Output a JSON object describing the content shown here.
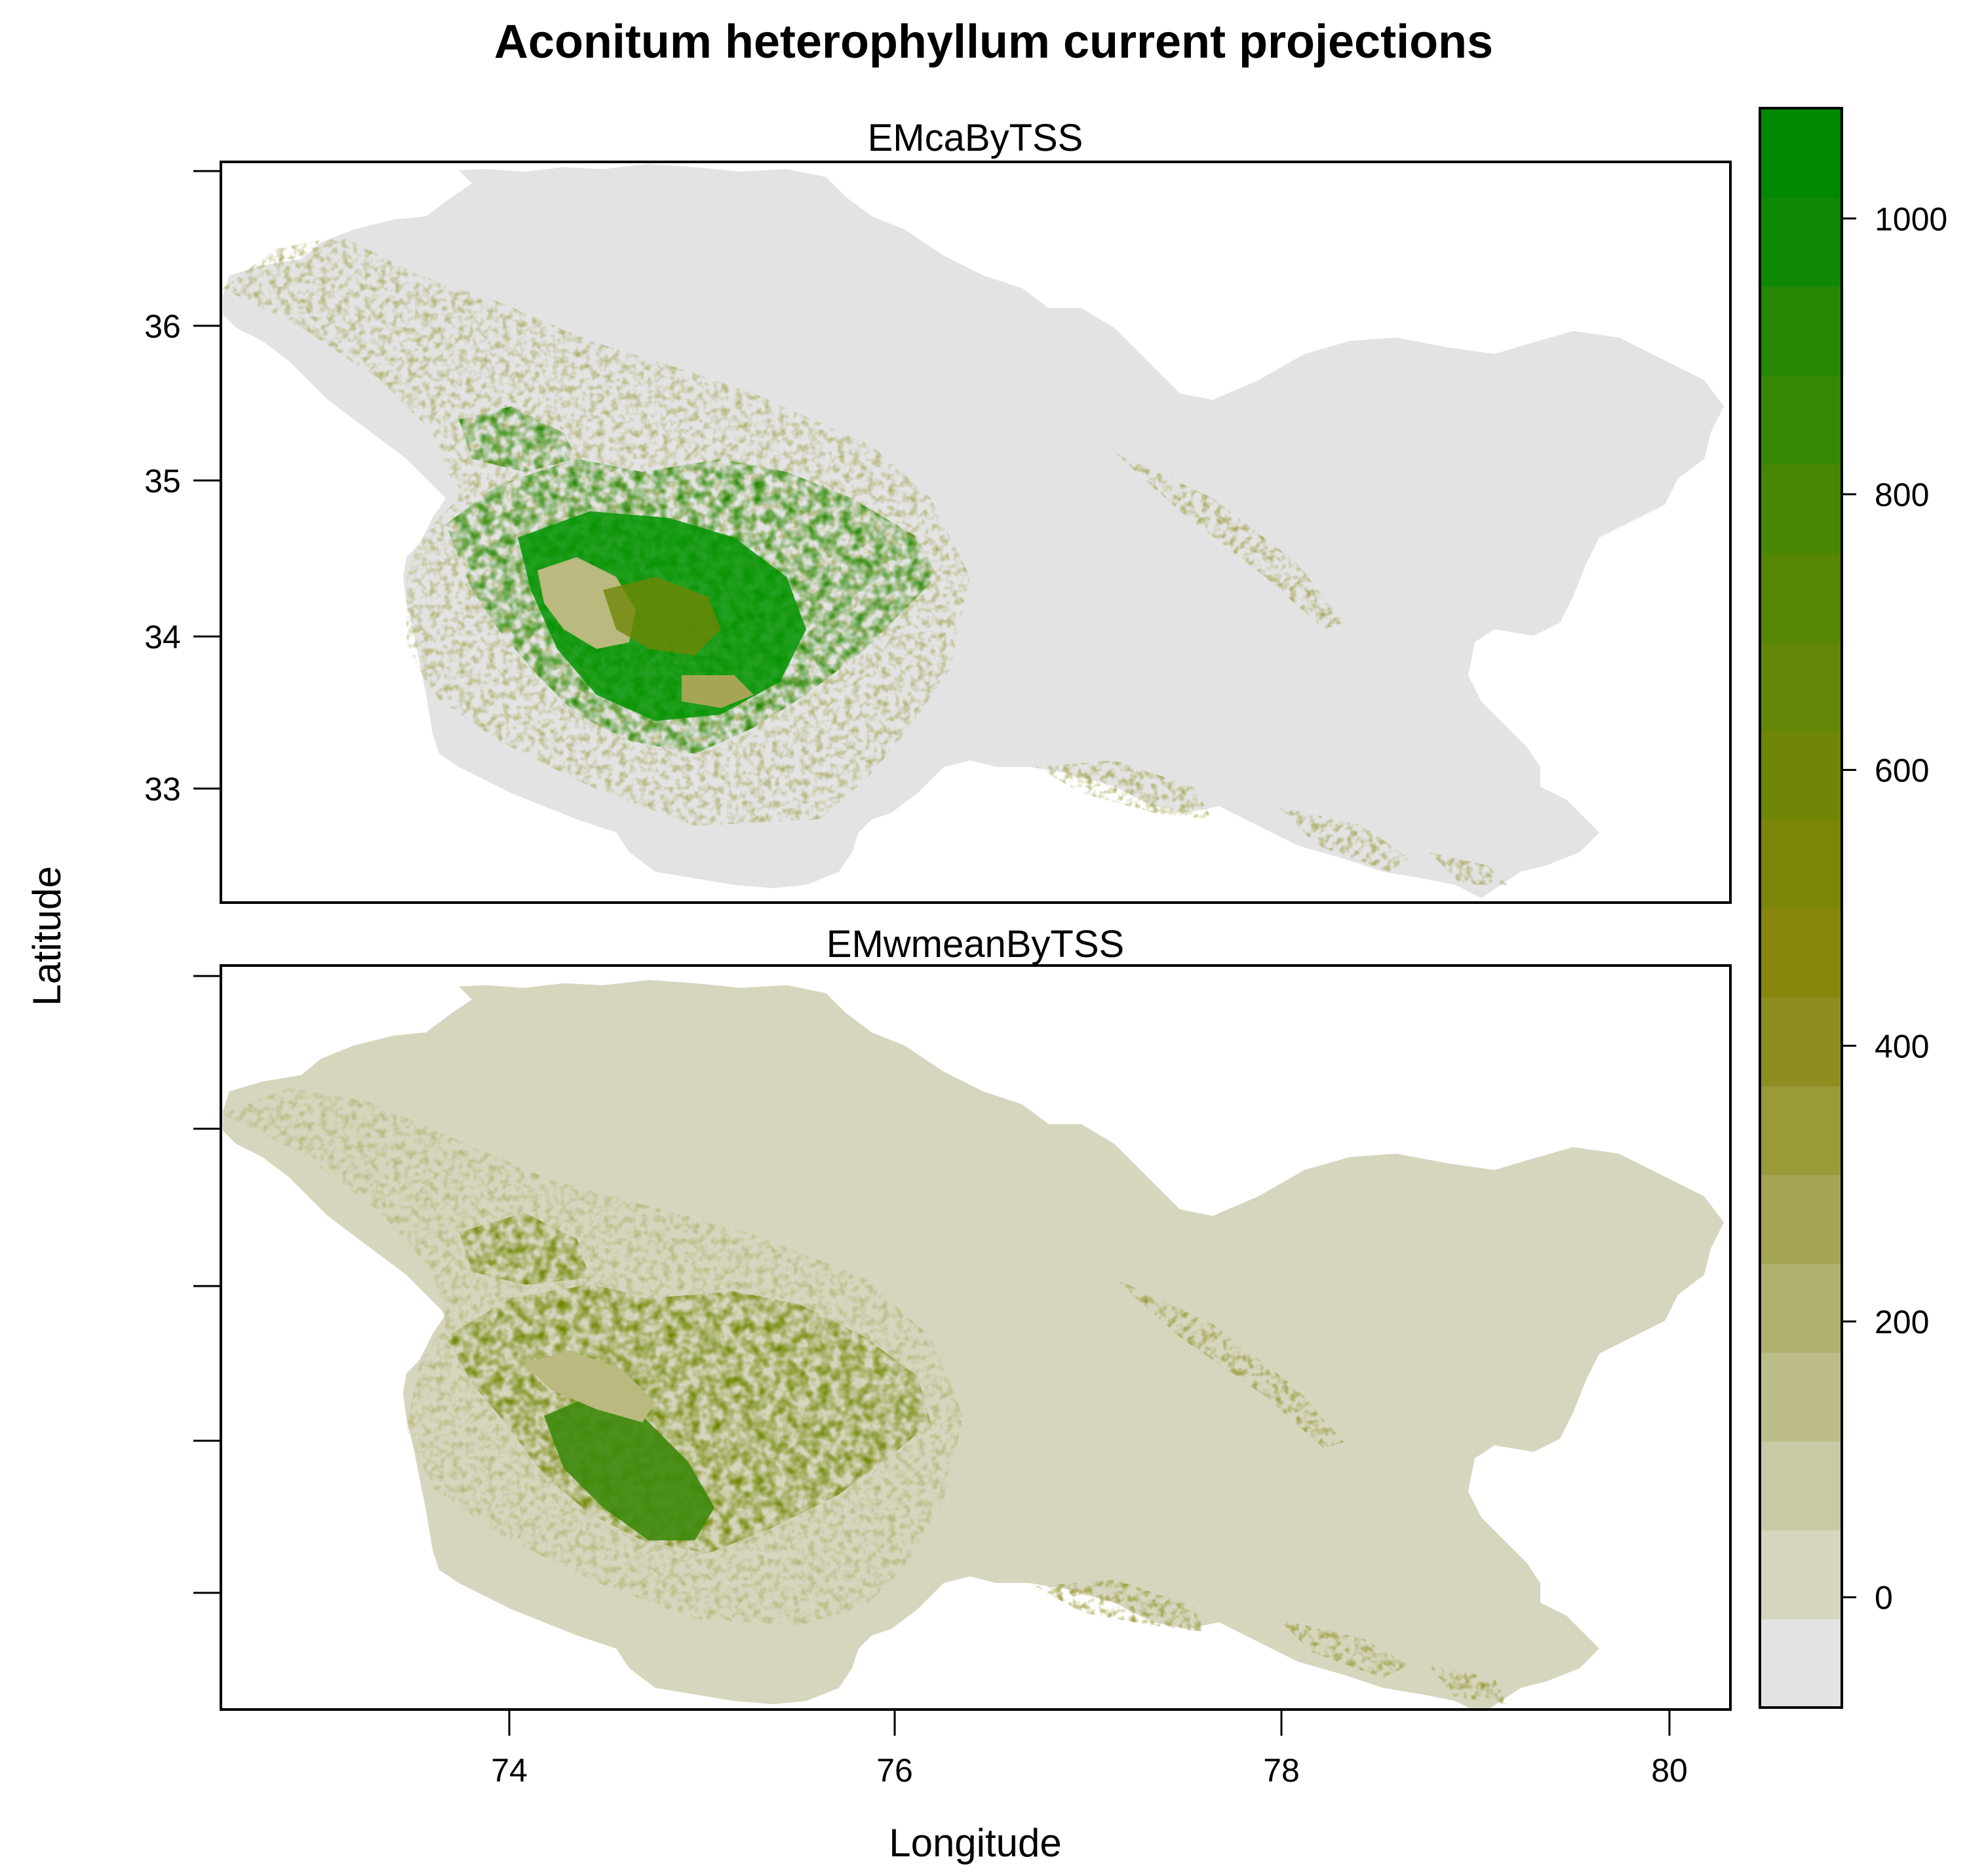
{
  "figure": {
    "title": "Aconitum heterophyllum current projections",
    "xlabel": "Longitude",
    "ylabel": "Latitude"
  },
  "colors": {
    "background_region": "#e3e3e3",
    "ramp": [
      "#e3e3e3",
      "#d6d6bf",
      "#c9c9a5",
      "#bdbd8a",
      "#b1b16f",
      "#a5a554",
      "#9a9a39",
      "#8e8e20",
      "#86870c",
      "#7b8608",
      "#6f8606",
      "#628605",
      "#558605",
      "#468704",
      "#378804",
      "#258804",
      "#0f8805",
      "#008800"
    ],
    "frame": "#000000"
  },
  "chart_data": {
    "type": "heatmap",
    "projection_note": "",
    "x_range": [
      72.5,
      80.3
    ],
    "y_range": [
      32.3,
      37.05
    ],
    "x_ticks": [
      "74",
      "76",
      "78",
      "80"
    ],
    "y_ticks": [
      "33",
      "34",
      "35",
      "36"
    ],
    "panels": [
      {
        "name": "EMcaByTSS",
        "summary": {
          "core_high_region_lon_lat": [
            75.0,
            34.1
          ],
          "core_value": 1000,
          "valley_patch_lon_lat": [
            74.5,
            34.2
          ],
          "valley_patch_value": 300,
          "background_value": -50
        }
      },
      {
        "name": "EMwmeanByTSS",
        "summary": {
          "core_high_region_lon_lat": [
            74.9,
            33.9
          ],
          "core_value": 850,
          "valley_patch_value": 250,
          "background_value": 60
        }
      }
    ],
    "colorbar": {
      "ticks": [
        "0",
        "200",
        "400",
        "600",
        "800",
        "1000"
      ],
      "tick_values": [
        0,
        200,
        400,
        600,
        800,
        1000
      ],
      "range": [
        -80,
        1080
      ],
      "levels": 18
    }
  }
}
